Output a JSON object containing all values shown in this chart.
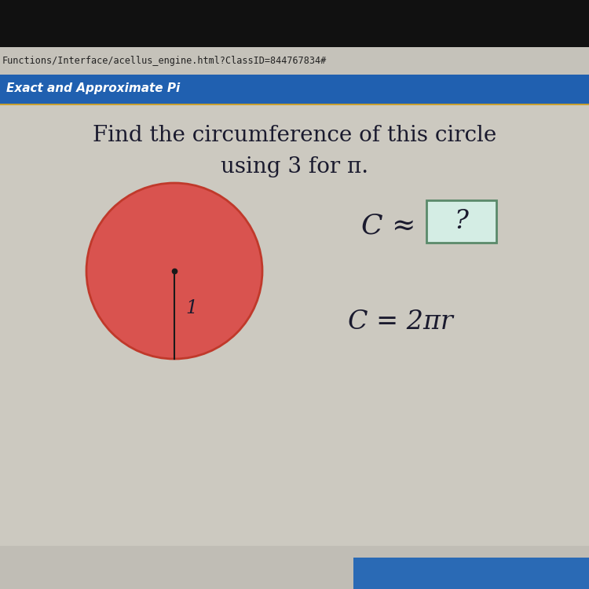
{
  "bg_color_outer": "#1a1a1a",
  "bg_color_screen": "#ccc9c0",
  "top_bar_dark": "#000000",
  "url_bar_color": "#c8c4bc",
  "url_text": "Functions/Interface/acellus_engine.html?ClassID=844767834#",
  "url_text_color": "#222222",
  "blue_bar_color": "#2060b0",
  "blue_bar_text": "Exact and Approximate Pi",
  "blue_bar_text_color": "#ffffff",
  "separator_color": "#c8a030",
  "content_bg": "#ccc9c0",
  "question_line1": "Find the circumference of this circle",
  "question_line2": "using 3 for π.",
  "question_color": "#1a1a2e",
  "circle_fill": "#d9534f",
  "circle_edge": "#c0392b",
  "radius_label": "1",
  "box_fill": "#d4ede4",
  "box_edge": "#5a8a6a",
  "formula_color": "#1a1a2e",
  "bottom_bar_color": "#2a6ab5",
  "title_fs": 20,
  "formula_fs": 24,
  "approx_fs": 26
}
